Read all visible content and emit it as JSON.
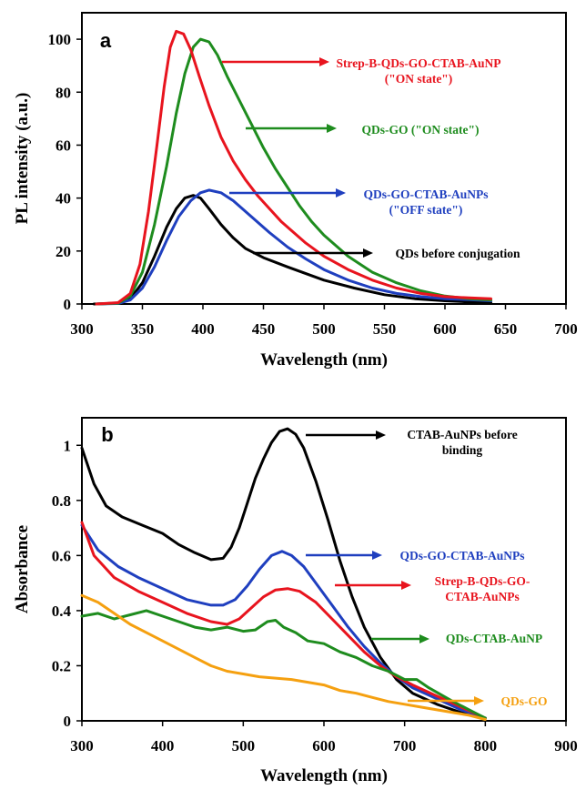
{
  "chart_data": [
    {
      "type": "line",
      "panel_label": "a",
      "xlabel": "Wavelength (nm)",
      "ylabel": "PL intensity (a.u.)",
      "xlim": [
        300,
        700
      ],
      "ylim": [
        0,
        110
      ],
      "xticks": [
        300,
        350,
        400,
        450,
        500,
        550,
        600,
        650,
        700
      ],
      "yticks": [
        0,
        20,
        40,
        60,
        80,
        100
      ],
      "grid": false,
      "series": [
        {
          "name": "QDs before conjugation",
          "color": "#000000",
          "points": [
            [
              310,
              0
            ],
            [
              330,
              0.3
            ],
            [
              340,
              2
            ],
            [
              350,
              8
            ],
            [
              360,
              18
            ],
            [
              370,
              29
            ],
            [
              378,
              36
            ],
            [
              385,
              40
            ],
            [
              392,
              41
            ],
            [
              398,
              40
            ],
            [
              405,
              36
            ],
            [
              415,
              30
            ],
            [
              425,
              25
            ],
            [
              435,
              21
            ],
            [
              450,
              17.5
            ],
            [
              470,
              14
            ],
            [
              500,
              9
            ],
            [
              525,
              6
            ],
            [
              550,
              3.5
            ],
            [
              575,
              2
            ],
            [
              600,
              1.2
            ],
            [
              620,
              0.8
            ],
            [
              638,
              0.5
            ]
          ]
        },
        {
          "name": "QDs-GO-CTAB-AuNPs",
          "color": "#1f3fbf",
          "points": [
            [
              312,
              0
            ],
            [
              330,
              0.2
            ],
            [
              340,
              1.5
            ],
            [
              350,
              6
            ],
            [
              360,
              14
            ],
            [
              370,
              24
            ],
            [
              380,
              33
            ],
            [
              390,
              39
            ],
            [
              398,
              42
            ],
            [
              405,
              43
            ],
            [
              415,
              42
            ],
            [
              425,
              39
            ],
            [
              440,
              33
            ],
            [
              455,
              27
            ],
            [
              470,
              21.5
            ],
            [
              485,
              17
            ],
            [
              500,
              13
            ],
            [
              520,
              9
            ],
            [
              540,
              6
            ],
            [
              560,
              4
            ],
            [
              580,
              2.8
            ],
            [
              600,
              2
            ],
            [
              620,
              1.6
            ],
            [
              638,
              1.2
            ]
          ]
        },
        {
          "name": "QDs-GO",
          "color": "#1e8c1e",
          "points": [
            [
              312,
              0
            ],
            [
              330,
              0.3
            ],
            [
              340,
              3
            ],
            [
              350,
              12
            ],
            [
              360,
              30
            ],
            [
              370,
              52
            ],
            [
              378,
              72
            ],
            [
              385,
              87
            ],
            [
              392,
              97
            ],
            [
              398,
              100
            ],
            [
              405,
              99
            ],
            [
              412,
              94
            ],
            [
              420,
              86
            ],
            [
              430,
              77
            ],
            [
              440,
              68
            ],
            [
              450,
              59
            ],
            [
              460,
              51
            ],
            [
              470,
              44
            ],
            [
              480,
              37
            ],
            [
              490,
              31
            ],
            [
              500,
              26
            ],
            [
              520,
              18
            ],
            [
              540,
              12
            ],
            [
              560,
              8
            ],
            [
              580,
              5
            ],
            [
              600,
              3
            ],
            [
              620,
              2
            ],
            [
              638,
              1.5
            ]
          ]
        },
        {
          "name": "Strep-B-QDs-GO-CTAB-AuNP",
          "color": "#e8141e",
          "points": [
            [
              312,
              0
            ],
            [
              330,
              0.5
            ],
            [
              340,
              4
            ],
            [
              348,
              15
            ],
            [
              355,
              35
            ],
            [
              362,
              60
            ],
            [
              368,
              82
            ],
            [
              373,
              97
            ],
            [
              378,
              103
            ],
            [
              384,
              102
            ],
            [
              390,
              96
            ],
            [
              397,
              86
            ],
            [
              405,
              75
            ],
            [
              415,
              63
            ],
            [
              425,
              54
            ],
            [
              435,
              47
            ],
            [
              445,
              41
            ],
            [
              455,
              36
            ],
            [
              465,
              31
            ],
            [
              475,
              27
            ],
            [
              485,
              23
            ],
            [
              500,
              18
            ],
            [
              520,
              13
            ],
            [
              540,
              9
            ],
            [
              560,
              6
            ],
            [
              580,
              4
            ],
            [
              600,
              2.8
            ],
            [
              620,
              2.3
            ],
            [
              638,
              2
            ]
          ]
        }
      ],
      "annotations": [
        {
          "lines": [
            "Strep-B-QDs-GO-CTAB-AuNP",
            "(\"ON state\")"
          ],
          "color": "#e8141e"
        },
        {
          "lines": [
            "QDs-GO (\"ON state\")"
          ],
          "color": "#1e8c1e"
        },
        {
          "lines": [
            "QDs-GO-CTAB-AuNPs",
            "(\"OFF state\")"
          ],
          "color": "#1f3fbf"
        },
        {
          "lines": [
            "QDs before conjugation"
          ],
          "color": "#000000"
        }
      ]
    },
    {
      "type": "line",
      "panel_label": "b",
      "xlabel": "Wavelength (nm)",
      "ylabel": "Absorbance",
      "xlim": [
        300,
        900
      ],
      "ylim": [
        0,
        1.1
      ],
      "xticks": [
        300,
        400,
        500,
        600,
        700,
        800,
        900
      ],
      "yticks": [
        0,
        0.2,
        0.4,
        0.6,
        0.8,
        1
      ],
      "ytick_labels": [
        "0",
        "0.2",
        "0.4",
        "0.6",
        "0.8",
        "1"
      ],
      "grid": false,
      "series": [
        {
          "name": "CTAB-AuNPs before binding",
          "color": "#000000",
          "points": [
            [
              300,
              0.99
            ],
            [
              315,
              0.86
            ],
            [
              330,
              0.78
            ],
            [
              350,
              0.74
            ],
            [
              375,
              0.71
            ],
            [
              400,
              0.68
            ],
            [
              420,
              0.64
            ],
            [
              440,
              0.61
            ],
            [
              460,
              0.585
            ],
            [
              475,
              0.59
            ],
            [
              485,
              0.63
            ],
            [
              495,
              0.7
            ],
            [
              505,
              0.79
            ],
            [
              515,
              0.88
            ],
            [
              525,
              0.95
            ],
            [
              535,
              1.01
            ],
            [
              545,
              1.05
            ],
            [
              555,
              1.06
            ],
            [
              565,
              1.04
            ],
            [
              575,
              0.99
            ],
            [
              590,
              0.87
            ],
            [
              605,
              0.73
            ],
            [
              620,
              0.58
            ],
            [
              635,
              0.45
            ],
            [
              650,
              0.34
            ],
            [
              670,
              0.23
            ],
            [
              690,
              0.15
            ],
            [
              710,
              0.1
            ],
            [
              740,
              0.06
            ],
            [
              770,
              0.03
            ],
            [
              800,
              0.01
            ]
          ]
        },
        {
          "name": "QDs-GO-CTAB-AuNPs",
          "color": "#1f3fbf",
          "points": [
            [
              300,
              0.71
            ],
            [
              320,
              0.62
            ],
            [
              345,
              0.56
            ],
            [
              370,
              0.52
            ],
            [
              400,
              0.48
            ],
            [
              430,
              0.44
            ],
            [
              460,
              0.42
            ],
            [
              475,
              0.42
            ],
            [
              490,
              0.44
            ],
            [
              505,
              0.49
            ],
            [
              520,
              0.55
            ],
            [
              535,
              0.6
            ],
            [
              548,
              0.615
            ],
            [
              560,
              0.6
            ],
            [
              575,
              0.56
            ],
            [
              590,
              0.5
            ],
            [
              610,
              0.42
            ],
            [
              630,
              0.34
            ],
            [
              650,
              0.27
            ],
            [
              670,
              0.21
            ],
            [
              690,
              0.16
            ],
            [
              710,
              0.12
            ],
            [
              740,
              0.08
            ],
            [
              770,
              0.04
            ],
            [
              800,
              0.01
            ]
          ]
        },
        {
          "name": "Strep-B-QDs-GO-CTAB-AuNPs",
          "color": "#e8141e",
          "points": [
            [
              300,
              0.72
            ],
            [
              315,
              0.6
            ],
            [
              340,
              0.52
            ],
            [
              370,
              0.47
            ],
            [
              400,
              0.43
            ],
            [
              430,
              0.39
            ],
            [
              460,
              0.36
            ],
            [
              480,
              0.35
            ],
            [
              495,
              0.37
            ],
            [
              510,
              0.41
            ],
            [
              525,
              0.45
            ],
            [
              540,
              0.475
            ],
            [
              555,
              0.48
            ],
            [
              570,
              0.47
            ],
            [
              590,
              0.43
            ],
            [
              610,
              0.37
            ],
            [
              630,
              0.31
            ],
            [
              650,
              0.25
            ],
            [
              670,
              0.2
            ],
            [
              690,
              0.16
            ],
            [
              710,
              0.13
            ],
            [
              740,
              0.09
            ],
            [
              770,
              0.05
            ],
            [
              800,
              0.01
            ]
          ]
        },
        {
          "name": "QDs-CTAB-AuNP",
          "color": "#1e8c1e",
          "points": [
            [
              300,
              0.38
            ],
            [
              320,
              0.39
            ],
            [
              340,
              0.37
            ],
            [
              360,
              0.385
            ],
            [
              380,
              0.4
            ],
            [
              400,
              0.38
            ],
            [
              420,
              0.36
            ],
            [
              440,
              0.34
            ],
            [
              460,
              0.33
            ],
            [
              480,
              0.34
            ],
            [
              500,
              0.325
            ],
            [
              515,
              0.33
            ],
            [
              530,
              0.36
            ],
            [
              540,
              0.365
            ],
            [
              550,
              0.34
            ],
            [
              565,
              0.32
            ],
            [
              580,
              0.29
            ],
            [
              600,
              0.28
            ],
            [
              620,
              0.25
            ],
            [
              640,
              0.23
            ],
            [
              660,
              0.2
            ],
            [
              680,
              0.18
            ],
            [
              700,
              0.15
            ],
            [
              715,
              0.15
            ],
            [
              730,
              0.12
            ],
            [
              760,
              0.07
            ],
            [
              780,
              0.04
            ],
            [
              800,
              0.01
            ]
          ]
        },
        {
          "name": "QDs-GO",
          "color": "#f5a010",
          "points": [
            [
              300,
              0.455
            ],
            [
              320,
              0.43
            ],
            [
              340,
              0.39
            ],
            [
              360,
              0.35
            ],
            [
              380,
              0.32
            ],
            [
              400,
              0.29
            ],
            [
              420,
              0.26
            ],
            [
              440,
              0.23
            ],
            [
              460,
              0.2
            ],
            [
              480,
              0.18
            ],
            [
              500,
              0.17
            ],
            [
              520,
              0.16
            ],
            [
              540,
              0.155
            ],
            [
              560,
              0.15
            ],
            [
              580,
              0.14
            ],
            [
              600,
              0.13
            ],
            [
              620,
              0.11
            ],
            [
              640,
              0.1
            ],
            [
              660,
              0.085
            ],
            [
              680,
              0.07
            ],
            [
              700,
              0.06
            ],
            [
              720,
              0.05
            ],
            [
              740,
              0.04
            ],
            [
              760,
              0.03
            ],
            [
              780,
              0.02
            ],
            [
              800,
              0.005
            ]
          ]
        }
      ],
      "annotations": [
        {
          "lines": [
            "CTAB-AuNPs before",
            "binding"
          ],
          "color": "#000000"
        },
        {
          "lines": [
            "QDs-GO-CTAB-AuNPs"
          ],
          "color": "#1f3fbf"
        },
        {
          "lines": [
            "Strep-B-QDs-GO-",
            "CTAB-AuNPs"
          ],
          "color": "#e8141e"
        },
        {
          "lines": [
            "QDs-CTAB-AuNP"
          ],
          "color": "#1e8c1e"
        },
        {
          "lines": [
            "QDs-GO"
          ],
          "color": "#f5a010"
        }
      ]
    }
  ]
}
